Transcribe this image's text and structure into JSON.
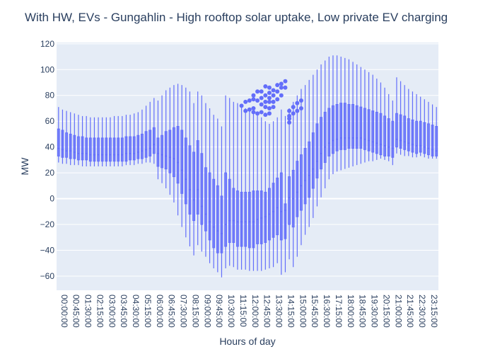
{
  "chart_data": {
    "type": "box",
    "title": "With HW, EVs - Gungahlin - High rooftop solar uptake, Low private EV charging",
    "xlabel": "Hours of day",
    "ylabel": "MW",
    "ylim": [
      -71,
      121
    ],
    "yticks": [
      -60,
      -40,
      -20,
      0,
      20,
      40,
      60,
      80,
      100,
      120
    ],
    "grid": true,
    "interval_minutes": 15,
    "tick_every_n_intervals": 3,
    "colors": {
      "plot_bg": "#e5ecf6",
      "box": "#636efa",
      "grid": "#ffffff"
    },
    "x_tick_labels": [
      "00:00:00",
      "00:45:00",
      "01:30:00",
      "02:15:00",
      "03:00:00",
      "03:45:00",
      "04:30:00",
      "05:15:00",
      "06:00:00",
      "06:45:00",
      "07:30:00",
      "08:15:00",
      "09:00:00",
      "09:45:00",
      "10:30:00",
      "11:15:00",
      "12:00:00",
      "12:45:00",
      "13:30:00",
      "14:15:00",
      "15:00:00",
      "15:45:00",
      "16:30:00",
      "17:15:00",
      "18:00:00",
      "18:45:00",
      "19:30:00",
      "20:15:00",
      "21:00:00",
      "21:45:00",
      "22:30:00",
      "23:15:00"
    ],
    "boxes": [
      [
        28,
        33,
        39,
        54,
        71
      ],
      [
        27,
        32,
        38,
        53,
        69
      ],
      [
        27,
        32,
        37,
        51,
        68
      ],
      [
        26,
        31,
        37,
        50,
        67
      ],
      [
        26,
        31,
        36,
        49,
        66
      ],
      [
        26,
        30,
        35,
        48,
        65
      ],
      [
        25,
        30,
        35,
        48,
        64
      ],
      [
        25,
        30,
        35,
        47,
        64
      ],
      [
        25,
        29,
        34,
        47,
        63
      ],
      [
        25,
        29,
        34,
        47,
        63
      ],
      [
        25,
        29,
        34,
        47,
        63
      ],
      [
        25,
        29,
        34,
        47,
        63
      ],
      [
        25,
        29,
        34,
        47,
        63
      ],
      [
        25,
        29,
        34,
        47,
        63
      ],
      [
        25,
        29,
        34,
        47,
        64
      ],
      [
        25,
        29,
        34,
        47,
        64
      ],
      [
        25,
        29,
        34,
        47,
        64
      ],
      [
        26,
        29,
        35,
        48,
        65
      ],
      [
        26,
        30,
        35,
        48,
        65
      ],
      [
        26,
        30,
        35,
        48,
        66
      ],
      [
        27,
        31,
        36,
        49,
        67
      ],
      [
        27,
        31,
        37,
        50,
        69
      ],
      [
        28,
        32,
        38,
        52,
        72
      ],
      [
        28,
        33,
        39,
        53,
        75
      ],
      [
        27,
        35,
        42,
        55,
        78
      ],
      [
        15,
        25,
        35,
        47,
        76
      ],
      [
        12,
        24,
        34,
        49,
        80
      ],
      [
        8,
        23,
        33,
        52,
        84
      ],
      [
        3,
        20,
        32,
        53,
        86
      ],
      [
        -3,
        17,
        31,
        55,
        88
      ],
      [
        -13,
        12,
        28,
        56,
        89
      ],
      [
        -22,
        4,
        22,
        53,
        88
      ],
      [
        -30,
        -4,
        15,
        47,
        86
      ],
      [
        -37,
        -12,
        7,
        41,
        83
      ],
      [
        -44,
        -17,
        -1,
        36,
        74
      ],
      [
        -36,
        -12,
        7,
        45,
        83
      ],
      [
        -41,
        -20,
        -6,
        35,
        80
      ],
      [
        -45,
        -25,
        -12,
        24,
        74
      ],
      [
        -50,
        -32,
        -18,
        20,
        70
      ],
      [
        -54,
        -38,
        -22,
        15,
        65
      ],
      [
        -57,
        -42,
        -25,
        10,
        62
      ],
      [
        -61,
        -42,
        -27,
        2,
        56
      ],
      [
        -54,
        -37,
        -20,
        20,
        80
      ],
      [
        -52,
        -34,
        -17,
        15,
        78
      ],
      [
        -53,
        -34,
        -17,
        8,
        75
      ],
      [
        -55,
        -37,
        -18,
        6,
        74
      ],
      [
        -55,
        -37,
        -18,
        5,
        72
      ],
      [
        -55,
        -37,
        -18,
        5,
        70
      ],
      [
        -56,
        -38,
        -18,
        5,
        68
      ],
      [
        -56,
        -38,
        -18,
        6,
        67
      ],
      [
        -56,
        -35,
        -16,
        6,
        65
      ],
      [
        -56,
        -35,
        -15,
        6,
        63
      ],
      [
        -55,
        -34,
        -14,
        5,
        60
      ],
      [
        -54,
        -32,
        -12,
        8,
        58
      ],
      [
        -53,
        -30,
        -10,
        12,
        60
      ],
      [
        -50,
        -28,
        -7,
        16,
        63
      ],
      [
        -59,
        -32,
        -10,
        20,
        69
      ],
      [
        -57,
        -31,
        -9,
        -4,
        64
      ],
      [
        -47,
        -20,
        1,
        17,
        70
      ],
      [
        -53,
        -22,
        0,
        22,
        75
      ],
      [
        -45,
        -14,
        5,
        29,
        80
      ],
      [
        -36,
        -9,
        10,
        34,
        85
      ],
      [
        -28,
        -4,
        14,
        39,
        88
      ],
      [
        -22,
        1,
        18,
        44,
        92
      ],
      [
        -15,
        8,
        23,
        51,
        96
      ],
      [
        -6,
        16,
        29,
        58,
        100
      ],
      [
        1,
        23,
        35,
        63,
        104
      ],
      [
        8,
        28,
        40,
        67,
        107
      ],
      [
        15,
        33,
        43,
        70,
        110
      ],
      [
        19,
        35,
        45,
        72,
        111
      ],
      [
        21,
        37,
        46,
        73,
        111
      ],
      [
        22,
        38,
        47,
        74,
        110
      ],
      [
        23,
        38,
        47,
        74,
        109
      ],
      [
        24,
        39,
        47,
        73,
        108
      ],
      [
        25,
        39,
        47,
        73,
        106
      ],
      [
        26,
        39,
        47,
        72,
        104
      ],
      [
        27,
        39,
        47,
        71,
        102
      ],
      [
        28,
        38,
        46,
        70,
        100
      ],
      [
        29,
        37,
        45,
        69,
        98
      ],
      [
        29,
        36,
        44,
        68,
        96
      ],
      [
        30,
        35,
        43,
        67,
        93
      ],
      [
        31,
        34,
        42,
        66,
        90
      ],
      [
        30,
        33,
        41,
        64,
        86
      ],
      [
        29,
        33,
        40,
        62,
        81
      ],
      [
        26,
        32,
        39,
        60,
        76
      ],
      [
        35,
        40,
        46,
        66,
        94
      ],
      [
        34,
        39,
        45,
        65,
        91
      ],
      [
        33,
        38,
        44,
        64,
        88
      ],
      [
        33,
        37,
        43,
        62,
        85
      ],
      [
        32,
        36,
        42,
        61,
        83
      ],
      [
        32,
        35,
        41,
        60,
        81
      ],
      [
        33,
        36,
        41,
        60,
        79
      ],
      [
        32,
        35,
        40,
        59,
        77
      ],
      [
        31,
        34,
        39,
        58,
        75
      ],
      [
        31,
        33,
        38,
        57,
        73
      ],
      [
        31,
        33,
        37,
        56,
        71
      ]
    ],
    "outliers": [
      [
        46,
        [
          72
        ]
      ],
      [
        47,
        [
          75,
          68
        ]
      ],
      [
        48,
        [
          76,
          69
        ]
      ],
      [
        49,
        [
          80,
          77,
          70,
          67
        ]
      ],
      [
        50,
        [
          83,
          76,
          66
        ]
      ],
      [
        51,
        [
          83,
          78,
          73,
          67
        ]
      ],
      [
        52,
        [
          87,
          80,
          75,
          71,
          65
        ]
      ],
      [
        53,
        [
          86,
          82,
          78,
          75,
          70,
          66
        ]
      ],
      [
        54,
        [
          84,
          80,
          75,
          71
        ]
      ],
      [
        55,
        [
          88,
          83,
          77
        ]
      ],
      [
        56,
        [
          89,
          86,
          80
        ]
      ],
      [
        57,
        [
          91,
          86
        ]
      ],
      [
        58,
        [
          68,
          64,
          62,
          59
        ]
      ],
      [
        59,
        [
          71,
          66
        ]
      ],
      [
        60,
        [
          74,
          68
        ]
      ],
      [
        61,
        [
          76,
          70
        ]
      ]
    ]
  }
}
